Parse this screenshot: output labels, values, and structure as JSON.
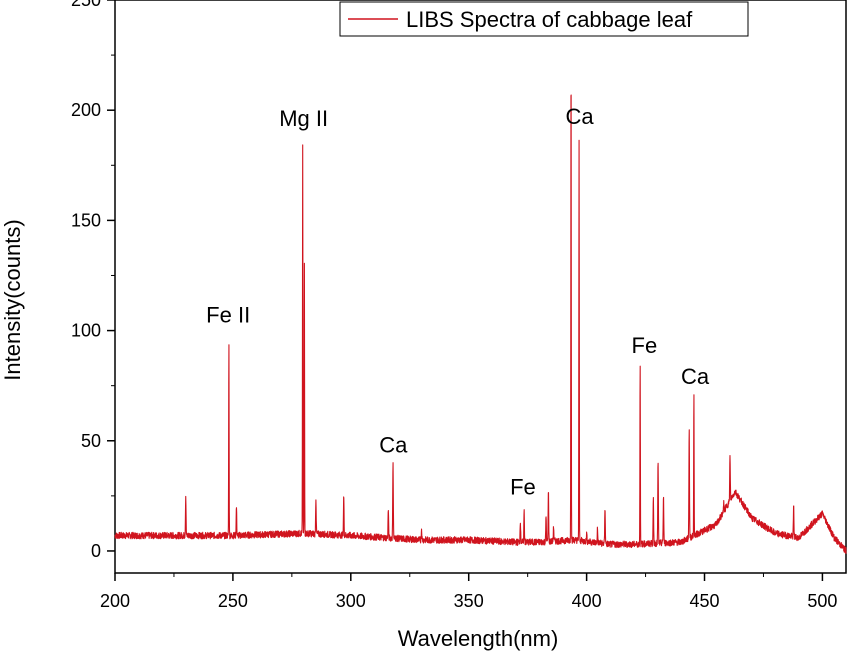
{
  "chart_data": {
    "type": "line",
    "xlabel": "Wavelength(nm)",
    "ylabel": "Intensity(counts)",
    "xlim": [
      200,
      510
    ],
    "ylim": [
      -10,
      250
    ],
    "xticks": [
      200,
      250,
      300,
      350,
      400,
      450,
      500
    ],
    "yticks": [
      0,
      50,
      100,
      150,
      200,
      250
    ],
    "legend": {
      "position": "top",
      "entries": [
        "LIBS Spectra of cabbage leaf"
      ]
    },
    "series": [
      {
        "name": "LIBS Spectra of cabbage leaf",
        "color": "#d0141e",
        "baseline": [
          [
            200,
            7
          ],
          [
            250,
            7
          ],
          [
            280,
            8
          ],
          [
            300,
            7
          ],
          [
            330,
            5
          ],
          [
            350,
            5
          ],
          [
            370,
            4
          ],
          [
            380,
            4
          ],
          [
            395,
            5
          ],
          [
            410,
            3
          ],
          [
            420,
            3
          ],
          [
            440,
            4
          ],
          [
            455,
            12
          ],
          [
            463,
            27
          ],
          [
            470,
            15
          ],
          [
            480,
            8
          ],
          [
            490,
            6
          ],
          [
            500,
            17
          ],
          [
            505,
            6
          ],
          [
            510,
            0
          ]
        ],
        "peaks": [
          [
            230,
            25
          ],
          [
            248.3,
            95
          ],
          [
            251.5,
            20
          ],
          [
            279.6,
            185
          ],
          [
            280.3,
            133
          ],
          [
            285.2,
            24
          ],
          [
            297,
            25
          ],
          [
            315.9,
            19
          ],
          [
            317.9,
            41
          ],
          [
            330,
            10
          ],
          [
            371.9,
            14
          ],
          [
            373.5,
            18
          ],
          [
            382.8,
            16
          ],
          [
            383.8,
            27
          ],
          [
            386,
            11
          ],
          [
            393.4,
            229
          ],
          [
            396.8,
            186
          ],
          [
            400,
            8
          ],
          [
            404.6,
            10
          ],
          [
            407.8,
            20
          ],
          [
            422.7,
            87
          ],
          [
            428.3,
            23
          ],
          [
            430.3,
            41
          ],
          [
            432.6,
            25
          ],
          [
            443.5,
            56
          ],
          [
            445.5,
            72
          ],
          [
            458.2,
            22
          ],
          [
            460.8,
            43
          ],
          [
            487.8,
            20
          ]
        ]
      }
    ],
    "annotations": [
      {
        "text": "Fe II",
        "x": 248,
        "y": 101
      },
      {
        "text": "Mg II",
        "x": 280,
        "y": 190
      },
      {
        "text": "Ca",
        "x": 318,
        "y": 42
      },
      {
        "text": "Fe",
        "x": 373,
        "y": 23
      },
      {
        "text": "Ca",
        "x": 393.4,
        "y": 232
      },
      {
        "text": "Ca",
        "x": 397,
        "y": 191
      },
      {
        "text": "Fe",
        "x": 424.5,
        "y": 87
      },
      {
        "text": "Ca",
        "x": 446,
        "y": 73
      }
    ]
  }
}
